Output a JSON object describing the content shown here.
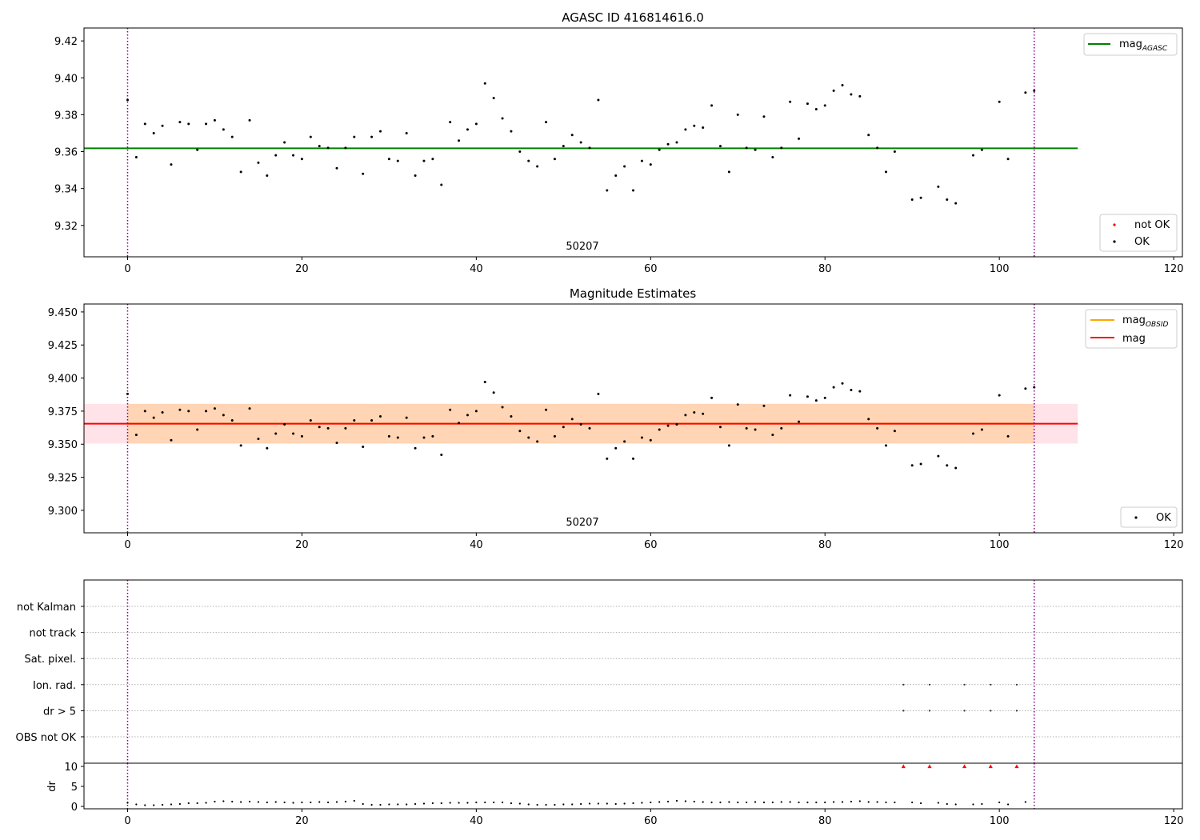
{
  "figure": {
    "event_label": "50207"
  },
  "chart_data": [
    {
      "id": "agasc",
      "type": "scatter",
      "title": "AGASC ID 416814616.0",
      "xlim": [
        -5,
        121
      ],
      "ylim": [
        9.303,
        9.427
      ],
      "xticks": [
        0,
        20,
        40,
        60,
        80,
        100,
        120
      ],
      "yticks": [
        9.32,
        9.34,
        9.36,
        9.38,
        9.4,
        9.42
      ],
      "ytick_labels": [
        "9.32",
        "9.34",
        "9.36",
        "9.38",
        "9.40",
        "9.42"
      ],
      "annotation": "50207",
      "obs_boundaries": [
        0,
        104
      ],
      "series": [
        {
          "name": "OK",
          "color": "#000000",
          "x": [
            0,
            1,
            2,
            3,
            4,
            5,
            6,
            7,
            8,
            9,
            10,
            11,
            12,
            13,
            14,
            15,
            16,
            17,
            18,
            19,
            20,
            21,
            22,
            23,
            24,
            25,
            26,
            27,
            28,
            29,
            30,
            31,
            32,
            33,
            34,
            35,
            36,
            37,
            38,
            39,
            40,
            41,
            42,
            43,
            44,
            45,
            46,
            47,
            48,
            49,
            50,
            51,
            52,
            53,
            54,
            55,
            56,
            57,
            58,
            59,
            60,
            61,
            62,
            63,
            64,
            65,
            66,
            67,
            68,
            69,
            70,
            71,
            72,
            73,
            74,
            75,
            76,
            77,
            78,
            79,
            80,
            81,
            82,
            83,
            84,
            85,
            86,
            87,
            88,
            90,
            91,
            93,
            94,
            95,
            97,
            98,
            100,
            101,
            103,
            104
          ],
          "y": [
            9.388,
            9.357,
            9.375,
            9.37,
            9.374,
            9.353,
            9.376,
            9.375,
            9.361,
            9.375,
            9.377,
            9.372,
            9.368,
            9.349,
            9.377,
            9.354,
            9.347,
            9.358,
            9.365,
            9.358,
            9.356,
            9.368,
            9.363,
            9.362,
            9.351,
            9.362,
            9.368,
            9.348,
            9.368,
            9.371,
            9.356,
            9.355,
            9.37,
            9.347,
            9.355,
            9.356,
            9.342,
            9.376,
            9.366,
            9.372,
            9.375,
            9.397,
            9.389,
            9.378,
            9.371,
            9.36,
            9.355,
            9.352,
            9.376,
            9.356,
            9.363,
            9.369,
            9.365,
            9.362,
            9.388,
            9.339,
            9.347,
            9.352,
            9.339,
            9.355,
            9.353,
            9.361,
            9.364,
            9.365,
            9.372,
            9.374,
            9.373,
            9.385,
            9.363,
            9.349,
            9.38,
            9.362,
            9.361,
            9.379,
            9.357,
            9.362,
            9.387,
            9.367,
            9.386,
            9.383,
            9.385,
            9.393,
            9.396,
            9.391,
            9.39,
            9.369,
            9.362,
            9.349,
            9.36,
            9.334,
            9.335,
            9.341,
            9.334,
            9.332,
            9.358,
            9.361,
            9.387,
            9.356,
            9.392,
            9.393
          ]
        },
        {
          "name": "not OK",
          "color": "#ff0000",
          "x": [],
          "y": []
        }
      ],
      "lines": [
        {
          "name": "mag",
          "subscript": "AGASC",
          "color": "#008000",
          "y": 9.3618,
          "x_range": [
            -5,
            109
          ]
        }
      ],
      "legends": [
        {
          "position": "top-right",
          "entries": [
            {
              "label": "mag",
              "sub": "AGASC",
              "kind": "line",
              "color": "#008000"
            }
          ]
        },
        {
          "position": "bottom-right",
          "entries": [
            {
              "label": "not OK",
              "kind": "marker",
              "color": "#ff0000"
            },
            {
              "label": "OK",
              "kind": "marker",
              "color": "#000000"
            }
          ]
        }
      ]
    },
    {
      "id": "estimates",
      "type": "scatter",
      "title": "Magnitude Estimates",
      "xlim": [
        -5,
        121
      ],
      "ylim": [
        9.283,
        9.456
      ],
      "xticks": [
        0,
        20,
        40,
        60,
        80,
        100,
        120
      ],
      "yticks": [
        9.3,
        9.325,
        9.35,
        9.375,
        9.4,
        9.425,
        9.45
      ],
      "ytick_labels": [
        "9.300",
        "9.325",
        "9.350",
        "9.375",
        "9.400",
        "9.425",
        "9.450"
      ],
      "annotation": "50207",
      "obs_boundaries": [
        0,
        104
      ],
      "series": [
        {
          "name": "OK",
          "color": "#000000",
          "x": [
            0,
            1,
            2,
            3,
            4,
            5,
            6,
            7,
            8,
            9,
            10,
            11,
            12,
            13,
            14,
            15,
            16,
            17,
            18,
            19,
            20,
            21,
            22,
            23,
            24,
            25,
            26,
            27,
            28,
            29,
            30,
            31,
            32,
            33,
            34,
            35,
            36,
            37,
            38,
            39,
            40,
            41,
            42,
            43,
            44,
            45,
            46,
            47,
            48,
            49,
            50,
            51,
            52,
            53,
            54,
            55,
            56,
            57,
            58,
            59,
            60,
            61,
            62,
            63,
            64,
            65,
            66,
            67,
            68,
            69,
            70,
            71,
            72,
            73,
            74,
            75,
            76,
            77,
            78,
            79,
            80,
            81,
            82,
            83,
            84,
            85,
            86,
            87,
            88,
            90,
            91,
            93,
            94,
            95,
            97,
            98,
            100,
            101,
            103,
            104
          ],
          "y": [
            9.388,
            9.357,
            9.375,
            9.37,
            9.374,
            9.353,
            9.376,
            9.375,
            9.361,
            9.375,
            9.377,
            9.372,
            9.368,
            9.349,
            9.377,
            9.354,
            9.347,
            9.358,
            9.365,
            9.358,
            9.356,
            9.368,
            9.363,
            9.362,
            9.351,
            9.362,
            9.368,
            9.348,
            9.368,
            9.371,
            9.356,
            9.355,
            9.37,
            9.347,
            9.355,
            9.356,
            9.342,
            9.376,
            9.366,
            9.372,
            9.375,
            9.397,
            9.389,
            9.378,
            9.371,
            9.36,
            9.355,
            9.352,
            9.376,
            9.356,
            9.363,
            9.369,
            9.365,
            9.362,
            9.388,
            9.339,
            9.347,
            9.352,
            9.339,
            9.355,
            9.353,
            9.361,
            9.364,
            9.365,
            9.372,
            9.374,
            9.373,
            9.385,
            9.363,
            9.349,
            9.38,
            9.362,
            9.361,
            9.379,
            9.357,
            9.362,
            9.387,
            9.367,
            9.386,
            9.383,
            9.385,
            9.393,
            9.396,
            9.391,
            9.39,
            9.369,
            9.362,
            9.349,
            9.36,
            9.334,
            9.335,
            9.341,
            9.334,
            9.332,
            9.358,
            9.361,
            9.387,
            9.356,
            9.392,
            9.393
          ]
        }
      ],
      "bands": [
        {
          "name": "mag band",
          "color": "#ffc0cb",
          "opacity": 0.45,
          "y_range": [
            9.3505,
            9.3805
          ],
          "x_range": [
            -5,
            109
          ]
        },
        {
          "name": "mag OBSID band",
          "color": "#ffa500",
          "opacity": 0.22,
          "y_range": [
            9.3505,
            9.3805
          ],
          "x_range": [
            0,
            104
          ]
        }
      ],
      "lines": [
        {
          "name": "mag",
          "subscript": "OBSID",
          "color": "#ffa500",
          "y": 9.3655,
          "x_range": [
            0,
            104
          ]
        },
        {
          "name": "mag",
          "color": "#ff0000",
          "y": 9.3655,
          "x_range": [
            -5,
            109
          ]
        }
      ],
      "legends": [
        {
          "position": "top-right",
          "entries": [
            {
              "label": "mag",
              "sub": "OBSID",
              "kind": "line",
              "color": "#ffa500"
            },
            {
              "label": "mag",
              "kind": "line",
              "color": "#ff0000"
            }
          ]
        },
        {
          "position": "bottom-right",
          "entries": [
            {
              "label": "OK",
              "kind": "marker",
              "color": "#000000"
            }
          ]
        }
      ]
    },
    {
      "id": "flags",
      "type": "scatter",
      "xlim": [
        -5,
        121
      ],
      "categories": [
        "not Kalman",
        "not track",
        "Sat. pixel.",
        "Ion. rad.",
        "dr > 5",
        "OBS not OK"
      ],
      "obs_boundaries": [
        0,
        104
      ],
      "series": [
        {
          "name": "Ion. rad.",
          "color": "#333333",
          "x": [
            89,
            92,
            96,
            99,
            102
          ]
        },
        {
          "name": "dr > 5",
          "color": "#333333",
          "x": [
            89,
            92,
            96,
            99,
            102
          ]
        }
      ]
    },
    {
      "id": "dr",
      "type": "scatter",
      "xlim": [
        -5,
        121
      ],
      "ylim": [
        -0.6,
        10.8
      ],
      "ylabel": "dr",
      "xticks": [
        0,
        20,
        40,
        60,
        80,
        100,
        120
      ],
      "xtick_labels": [
        "0",
        "20",
        "40",
        "60",
        "80",
        "100",
        "120"
      ],
      "yticks": [
        0,
        5,
        10
      ],
      "ytick_labels": [
        "0",
        "5",
        "10"
      ],
      "obs_boundaries": [
        0,
        104
      ],
      "series": [
        {
          "name": "dr",
          "color": "#000000",
          "x": [
            0,
            1,
            2,
            3,
            4,
            5,
            6,
            7,
            8,
            9,
            10,
            11,
            12,
            13,
            14,
            15,
            16,
            17,
            18,
            19,
            20,
            21,
            22,
            23,
            24,
            25,
            26,
            27,
            28,
            29,
            30,
            31,
            32,
            33,
            34,
            35,
            36,
            37,
            38,
            39,
            40,
            41,
            42,
            43,
            44,
            45,
            46,
            47,
            48,
            49,
            50,
            51,
            52,
            53,
            54,
            55,
            56,
            57,
            58,
            59,
            60,
            61,
            62,
            63,
            64,
            65,
            66,
            67,
            68,
            69,
            70,
            71,
            72,
            73,
            74,
            75,
            76,
            77,
            78,
            79,
            80,
            81,
            82,
            83,
            84,
            85,
            86,
            87,
            88,
            90,
            91,
            93,
            94,
            95,
            97,
            98,
            100,
            101,
            103
          ],
          "y": [
            0.9,
            0.5,
            0.3,
            0.3,
            0.4,
            0.5,
            0.6,
            0.8,
            0.8,
            0.9,
            1.2,
            1.3,
            1.2,
            1.1,
            1.2,
            1.1,
            1.0,
            1.1,
            1.0,
            0.9,
            1.0,
            1.0,
            1.1,
            1.0,
            1.1,
            1.2,
            1.4,
            0.6,
            0.4,
            0.4,
            0.5,
            0.5,
            0.5,
            0.6,
            0.7,
            0.8,
            0.8,
            0.9,
            0.9,
            0.9,
            1.0,
            1.0,
            1.0,
            1.0,
            0.8,
            0.7,
            0.5,
            0.4,
            0.4,
            0.4,
            0.5,
            0.5,
            0.6,
            0.7,
            0.7,
            0.7,
            0.6,
            0.7,
            0.8,
            0.9,
            1.0,
            1.1,
            1.2,
            1.4,
            1.3,
            1.2,
            1.1,
            1.0,
            1.0,
            1.1,
            1.0,
            1.0,
            1.1,
            1.0,
            1.0,
            1.1,
            1.1,
            1.0,
            1.0,
            1.0,
            1.0,
            1.1,
            1.1,
            1.2,
            1.3,
            1.1,
            1.1,
            1.0,
            1.0,
            1.0,
            0.8,
            0.9,
            0.6,
            0.5,
            0.5,
            0.6,
            1.0,
            0.5,
            1.1
          ]
        },
        {
          "name": "dr > 10",
          "color": "#ff0000",
          "marker": "triangle",
          "x": [
            89,
            92,
            96,
            99,
            102
          ],
          "y": [
            10,
            10,
            10,
            10,
            10
          ]
        }
      ]
    }
  ]
}
